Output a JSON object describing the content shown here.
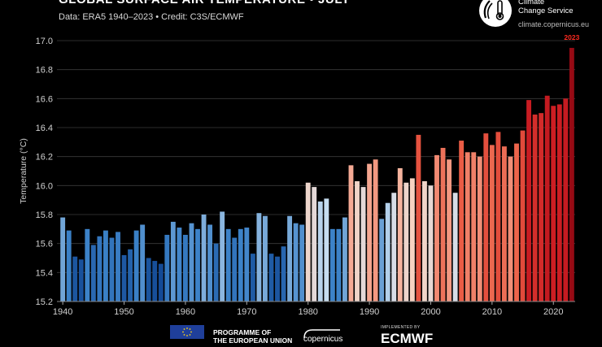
{
  "header": {
    "title": "GLOBAL SURFACE AIR TEMPERATURE • JULY",
    "subtitle": "Data: ERA5 1940–2023 • Credit: C3S/ECMWF",
    "brand_line1": "Climate",
    "brand_line2": "Change Service",
    "website": "climate.copernicus.eu"
  },
  "footer": {
    "programme": "PROGRAMME OF",
    "programme_line2": "THE EUROPEAN UNION",
    "copernicus": "copernicus",
    "implemented_by": "IMPLEMENTED BY",
    "ecmwf": "ECMWF"
  },
  "colors": {
    "background": "#000000",
    "record_label": "#ff2a1f"
  },
  "chart_data": {
    "type": "bar",
    "title": "GLOBAL SURFACE AIR TEMPERATURE • JULY",
    "xlabel": "",
    "ylabel": "Temperature (°C)",
    "ylim": [
      15.2,
      17.0
    ],
    "yticks": [
      15.2,
      15.4,
      15.6,
      15.8,
      16.0,
      16.2,
      16.4,
      16.6,
      16.8,
      17.0
    ],
    "xticks": [
      1940,
      1950,
      1960,
      1970,
      1980,
      1990,
      2000,
      2010,
      2020
    ],
    "grid": true,
    "highlight_label": "2023",
    "years": [
      1940,
      1941,
      1942,
      1943,
      1944,
      1945,
      1946,
      1947,
      1948,
      1949,
      1950,
      1951,
      1952,
      1953,
      1954,
      1955,
      1956,
      1957,
      1958,
      1959,
      1960,
      1961,
      1962,
      1963,
      1964,
      1965,
      1966,
      1967,
      1968,
      1969,
      1970,
      1971,
      1972,
      1973,
      1974,
      1975,
      1976,
      1977,
      1978,
      1979,
      1980,
      1981,
      1982,
      1983,
      1984,
      1985,
      1986,
      1987,
      1988,
      1989,
      1990,
      1991,
      1992,
      1993,
      1994,
      1995,
      1996,
      1997,
      1998,
      1999,
      2000,
      2001,
      2002,
      2003,
      2004,
      2005,
      2006,
      2007,
      2008,
      2009,
      2010,
      2011,
      2012,
      2013,
      2014,
      2015,
      2016,
      2017,
      2018,
      2019,
      2020,
      2021,
      2022,
      2023
    ],
    "values": [
      15.78,
      15.69,
      15.51,
      15.49,
      15.7,
      15.59,
      15.65,
      15.69,
      15.64,
      15.68,
      15.52,
      15.56,
      15.69,
      15.73,
      15.5,
      15.48,
      15.46,
      15.66,
      15.75,
      15.71,
      15.66,
      15.74,
      15.7,
      15.8,
      15.73,
      15.6,
      15.82,
      15.7,
      15.64,
      15.7,
      15.71,
      15.53,
      15.81,
      15.79,
      15.53,
      15.51,
      15.58,
      15.79,
      15.74,
      15.73,
      16.02,
      15.99,
      15.89,
      15.91,
      15.7,
      15.7,
      15.78,
      16.14,
      16.03,
      15.99,
      16.15,
      16.18,
      15.77,
      15.88,
      15.95,
      16.12,
      16.02,
      16.05,
      16.35,
      16.03,
      16.0,
      16.21,
      16.26,
      16.18,
      15.95,
      16.31,
      16.23,
      16.23,
      16.2,
      16.36,
      16.28,
      16.37,
      16.27,
      16.2,
      16.29,
      16.38,
      16.59,
      16.49,
      16.5,
      16.62,
      16.55,
      16.56,
      16.6,
      16.95
    ]
  }
}
